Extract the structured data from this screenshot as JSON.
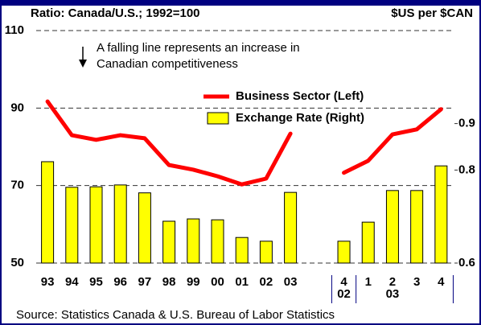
{
  "chart_data": {
    "type": "bar_line",
    "subtitle_left": "Ratio:  Canada/U.S.; 1992=100",
    "subtitle_right": "$US per $CAN",
    "annotation": [
      "A falling line represents an increase in",
      "Canadian competitiveness"
    ],
    "categories": [
      "93",
      "94",
      "95",
      "96",
      "97",
      "98",
      "99",
      "00",
      "01",
      "02",
      "03",
      null,
      "4",
      "1",
      "2",
      "3",
      "4"
    ],
    "periods": [
      "02",
      "03"
    ],
    "series": [
      {
        "name": "Business Sector (Left)",
        "color": "#ff0000",
        "kind": "line",
        "axis": "y",
        "values": [
          91.7,
          83.0,
          81.8,
          83.0,
          82.2,
          75.3,
          74.1,
          72.4,
          70.3,
          71.8,
          83.4,
          null,
          73.3,
          76.4,
          83.2,
          84.5,
          89.7
        ]
      },
      {
        "name": "Exchange Rate (Right)",
        "color": "#ffff00",
        "kind": "bar",
        "axis": "y2",
        "values": [
          0.818,
          0.763,
          0.764,
          0.768,
          0.751,
          0.69,
          0.695,
          0.693,
          0.655,
          0.647,
          0.752,
          null,
          0.647,
          0.688,
          0.756,
          0.756,
          0.809
        ]
      }
    ],
    "ylim": [
      50,
      110
    ],
    "yticks": [
      50,
      70,
      90,
      110
    ],
    "y2lim": [
      0.6,
      1.1
    ],
    "y2ticks": [
      0.6,
      0.8,
      0.9
    ],
    "grid": true,
    "source": "Source: Statistics Canada & U.S. Bureau of Labor Statistics"
  }
}
